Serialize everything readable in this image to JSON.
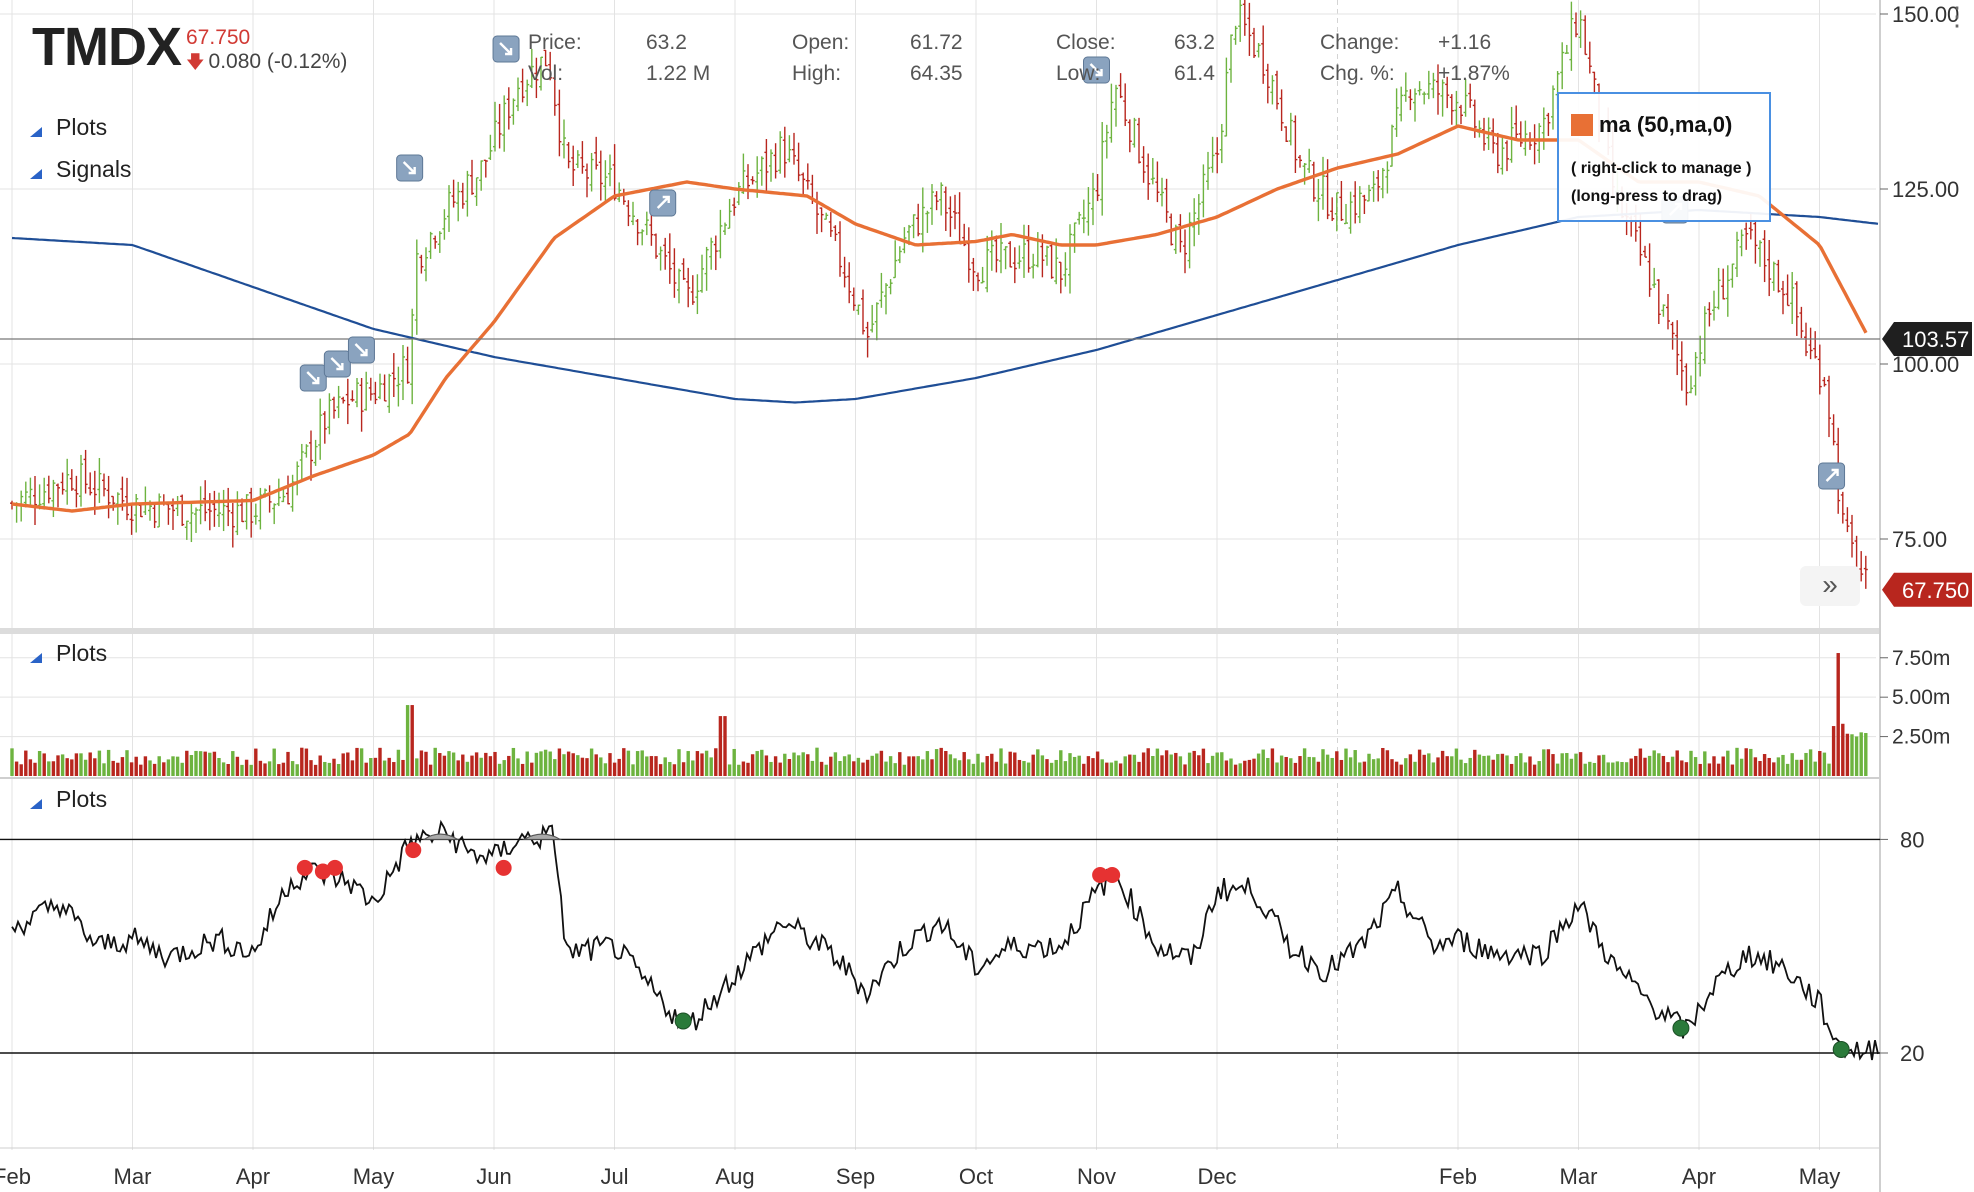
{
  "header": {
    "symbol": "TMDX",
    "last": "67.750",
    "change": "0.080 (-0.12%)"
  },
  "ohlc": [
    {
      "label": "Price:",
      "value": "63.2"
    },
    {
      "label": "Vol:",
      "value": "1.22 M"
    },
    {
      "label": "Open:",
      "value": "61.72"
    },
    {
      "label": "High:",
      "value": "64.35"
    },
    {
      "label": "Close:",
      "value": "63.2"
    },
    {
      "label": "Low:",
      "value": "61.4"
    },
    {
      "label": "Change:",
      "value": "+1.16"
    },
    {
      "label": "Chg. %:",
      "value": "+1.87%"
    }
  ],
  "panels": {
    "price_plots": "Plots",
    "price_signals": "Signals",
    "volume_plots": "Plots",
    "osc_plots": "Plots"
  },
  "tooltip": {
    "title": "ma (50,ma,0)",
    "line1": "( right-click to manage )",
    "line2": "(long-press to drag)",
    "color": "#e87035"
  },
  "badges": {
    "crosshair_value": "103.57",
    "last_price": "67.750"
  },
  "colors": {
    "up": "#6db33f",
    "down": "#b8261e",
    "ma50": "#e87035",
    "ma200": "#1f4e96",
    "overbought_dot": "#e63232",
    "oversold_dot": "#2a7a3a"
  },
  "chart_data": [
    {
      "type": "candlestick",
      "x_labels": [
        "Feb",
        "Mar",
        "Apr",
        "May",
        "Jun",
        "Jul",
        "Aug",
        "Sep",
        "Oct",
        "Nov",
        "Dec",
        "",
        "Feb",
        "Mar",
        "Apr",
        "May"
      ],
      "y_ticks": [
        "150.00",
        "125.00",
        "100.00",
        "75.00"
      ],
      "ylim": [
        62,
        152
      ],
      "crosshair": 103.57,
      "last": 67.75,
      "close_by_month": [
        {
          "m": 0,
          "v": 80
        },
        {
          "m": 0.5,
          "v": 84
        },
        {
          "m": 1,
          "v": 80
        },
        {
          "m": 1.5,
          "v": 79
        },
        {
          "m": 2,
          "v": 79
        },
        {
          "m": 2.3,
          "v": 82
        },
        {
          "m": 2.6,
          "v": 92
        },
        {
          "m": 2.8,
          "v": 95
        },
        {
          "m": 3.0,
          "v": 96
        },
        {
          "m": 3.3,
          "v": 100
        },
        {
          "m": 3.35,
          "v": 115
        },
        {
          "m": 3.6,
          "v": 122
        },
        {
          "m": 3.9,
          "v": 128
        },
        {
          "m": 4.2,
          "v": 140
        },
        {
          "m": 4.45,
          "v": 144
        },
        {
          "m": 4.6,
          "v": 128
        },
        {
          "m": 5.0,
          "v": 126
        },
        {
          "m": 5.3,
          "v": 118
        },
        {
          "m": 5.6,
          "v": 109
        },
        {
          "m": 6.0,
          "v": 124
        },
        {
          "m": 6.4,
          "v": 131
        },
        {
          "m": 6.9,
          "v": 114
        },
        {
          "m": 7.1,
          "v": 104
        },
        {
          "m": 7.4,
          "v": 118
        },
        {
          "m": 7.7,
          "v": 124
        },
        {
          "m": 8.0,
          "v": 114
        },
        {
          "m": 8.5,
          "v": 116
        },
        {
          "m": 8.7,
          "v": 113
        },
        {
          "m": 9.0,
          "v": 125
        },
        {
          "m": 9.15,
          "v": 140
        },
        {
          "m": 9.5,
          "v": 124
        },
        {
          "m": 9.7,
          "v": 116
        },
        {
          "m": 10.0,
          "v": 130
        },
        {
          "m": 10.15,
          "v": 150
        },
        {
          "m": 10.4,
          "v": 143
        },
        {
          "m": 10.7,
          "v": 128
        },
        {
          "m": 11.0,
          "v": 122
        },
        {
          "m": 11.3,
          "v": 124
        },
        {
          "m": 11.6,
          "v": 140
        },
        {
          "m": 12.0,
          "v": 138
        },
        {
          "m": 12.3,
          "v": 130
        },
        {
          "m": 12.7,
          "v": 134
        },
        {
          "m": 13.0,
          "v": 150
        },
        {
          "m": 13.3,
          "v": 124
        },
        {
          "m": 13.6,
          "v": 112
        },
        {
          "m": 13.9,
          "v": 97
        },
        {
          "m": 14.1,
          "v": 108
        },
        {
          "m": 14.4,
          "v": 118
        },
        {
          "m": 14.75,
          "v": 110
        },
        {
          "m": 14.9,
          "v": 102
        },
        {
          "m": 15.05,
          "v": 98
        },
        {
          "m": 15.2,
          "v": 76
        },
        {
          "m": 15.4,
          "v": 67.75
        }
      ],
      "ma50_by_month": [
        {
          "m": 0,
          "v": 80
        },
        {
          "m": 0.5,
          "v": 79
        },
        {
          "m": 1,
          "v": 80
        },
        {
          "m": 2,
          "v": 80.5
        },
        {
          "m": 2.5,
          "v": 84
        },
        {
          "m": 3.0,
          "v": 87
        },
        {
          "m": 3.3,
          "v": 90
        },
        {
          "m": 3.6,
          "v": 98
        },
        {
          "m": 4.0,
          "v": 106
        },
        {
          "m": 4.5,
          "v": 118
        },
        {
          "m": 5.0,
          "v": 124
        },
        {
          "m": 5.6,
          "v": 126
        },
        {
          "m": 6.0,
          "v": 125
        },
        {
          "m": 6.6,
          "v": 124
        },
        {
          "m": 7.0,
          "v": 120
        },
        {
          "m": 7.5,
          "v": 117
        },
        {
          "m": 8.0,
          "v": 117.5
        },
        {
          "m": 8.3,
          "v": 118.5
        },
        {
          "m": 8.7,
          "v": 117
        },
        {
          "m": 9.0,
          "v": 117
        },
        {
          "m": 9.5,
          "v": 118.5
        },
        {
          "m": 10.0,
          "v": 121
        },
        {
          "m": 10.5,
          "v": 125
        },
        {
          "m": 11.0,
          "v": 128
        },
        {
          "m": 11.5,
          "v": 130
        },
        {
          "m": 12.0,
          "v": 134
        },
        {
          "m": 12.5,
          "v": 132
        },
        {
          "m": 13.0,
          "v": 132
        },
        {
          "m": 13.5,
          "v": 126
        },
        {
          "m": 14.0,
          "v": 126
        },
        {
          "m": 14.5,
          "v": 124
        },
        {
          "m": 15.0,
          "v": 117
        },
        {
          "m": 15.4,
          "v": 104
        }
      ],
      "ma200_by_month": [
        {
          "m": 0,
          "v": 118
        },
        {
          "m": 1,
          "v": 117
        },
        {
          "m": 2,
          "v": 111
        },
        {
          "m": 3,
          "v": 105
        },
        {
          "m": 4,
          "v": 101
        },
        {
          "m": 5,
          "v": 98
        },
        {
          "m": 6,
          "v": 95
        },
        {
          "m": 6.5,
          "v": 94.5
        },
        {
          "m": 7,
          "v": 95
        },
        {
          "m": 8,
          "v": 98
        },
        {
          "m": 9,
          "v": 102
        },
        {
          "m": 10,
          "v": 107
        },
        {
          "m": 11,
          "v": 112
        },
        {
          "m": 12,
          "v": 117
        },
        {
          "m": 13,
          "v": 121
        },
        {
          "m": 14,
          "v": 122
        },
        {
          "m": 15,
          "v": 121
        },
        {
          "m": 15.5,
          "v": 120
        }
      ]
    },
    {
      "type": "bar",
      "y_ticks": [
        "7.50m",
        "5.00m",
        "2.50m"
      ],
      "ylim": [
        0,
        8500000
      ],
      "spikes_by_month": [
        {
          "m": 3.3,
          "v": 4500000
        },
        {
          "m": 5.9,
          "v": 3800000
        },
        {
          "m": 15.15,
          "v": 7800000
        }
      ]
    },
    {
      "type": "line",
      "y_ticks": [
        "80",
        "20"
      ],
      "ylim": [
        -5,
        95
      ],
      "levels": [
        80,
        20
      ],
      "value_by_month": [
        {
          "m": 0,
          "v": 55
        },
        {
          "m": 0.4,
          "v": 62
        },
        {
          "m": 0.7,
          "v": 50
        },
        {
          "m": 1.0,
          "v": 52
        },
        {
          "m": 1.3,
          "v": 47
        },
        {
          "m": 1.7,
          "v": 52
        },
        {
          "m": 2.0,
          "v": 48
        },
        {
          "m": 2.3,
          "v": 68
        },
        {
          "m": 2.5,
          "v": 71
        },
        {
          "m": 2.8,
          "v": 68
        },
        {
          "m": 3.0,
          "v": 62
        },
        {
          "m": 3.3,
          "v": 79
        },
        {
          "m": 3.6,
          "v": 82
        },
        {
          "m": 3.8,
          "v": 76
        },
        {
          "m": 4.0,
          "v": 75
        },
        {
          "m": 4.2,
          "v": 80
        },
        {
          "m": 4.5,
          "v": 81
        },
        {
          "m": 4.6,
          "v": 48
        },
        {
          "m": 5.0,
          "v": 50
        },
        {
          "m": 5.3,
          "v": 38
        },
        {
          "m": 5.6,
          "v": 27
        },
        {
          "m": 6.0,
          "v": 42
        },
        {
          "m": 6.4,
          "v": 57
        },
        {
          "m": 6.8,
          "v": 48
        },
        {
          "m": 7.1,
          "v": 37
        },
        {
          "m": 7.4,
          "v": 50
        },
        {
          "m": 7.7,
          "v": 57
        },
        {
          "m": 8.0,
          "v": 44
        },
        {
          "m": 8.3,
          "v": 50
        },
        {
          "m": 8.7,
          "v": 50
        },
        {
          "m": 9.0,
          "v": 65
        },
        {
          "m": 9.15,
          "v": 71
        },
        {
          "m": 9.5,
          "v": 50
        },
        {
          "m": 9.8,
          "v": 46
        },
        {
          "m": 10.0,
          "v": 66
        },
        {
          "m": 10.3,
          "v": 66
        },
        {
          "m": 10.6,
          "v": 50
        },
        {
          "m": 10.9,
          "v": 43
        },
        {
          "m": 11.2,
          "v": 50
        },
        {
          "m": 11.5,
          "v": 65
        },
        {
          "m": 11.8,
          "v": 50
        },
        {
          "m": 12.0,
          "v": 52
        },
        {
          "m": 12.3,
          "v": 48
        },
        {
          "m": 12.7,
          "v": 48
        },
        {
          "m": 13.0,
          "v": 62
        },
        {
          "m": 13.3,
          "v": 44
        },
        {
          "m": 13.6,
          "v": 34
        },
        {
          "m": 13.9,
          "v": 26
        },
        {
          "m": 14.1,
          "v": 38
        },
        {
          "m": 14.4,
          "v": 48
        },
        {
          "m": 14.7,
          "v": 44
        },
        {
          "m": 15.0,
          "v": 34
        },
        {
          "m": 15.15,
          "v": 22
        },
        {
          "m": 15.4,
          "v": 20
        },
        {
          "m": 15.5,
          "v": 23
        }
      ],
      "overbought_dots_by_month": [
        {
          "m": 2.43,
          "v": 72
        },
        {
          "m": 2.58,
          "v": 71
        },
        {
          "m": 2.68,
          "v": 72
        },
        {
          "m": 3.33,
          "v": 77
        },
        {
          "m": 4.08,
          "v": 72
        },
        {
          "m": 9.03,
          "v": 70
        },
        {
          "m": 9.13,
          "v": 70
        }
      ],
      "oversold_dots_by_month": [
        {
          "m": 5.57,
          "v": 29
        },
        {
          "m": 13.85,
          "v": 27
        },
        {
          "m": 15.18,
          "v": 21
        }
      ]
    }
  ]
}
